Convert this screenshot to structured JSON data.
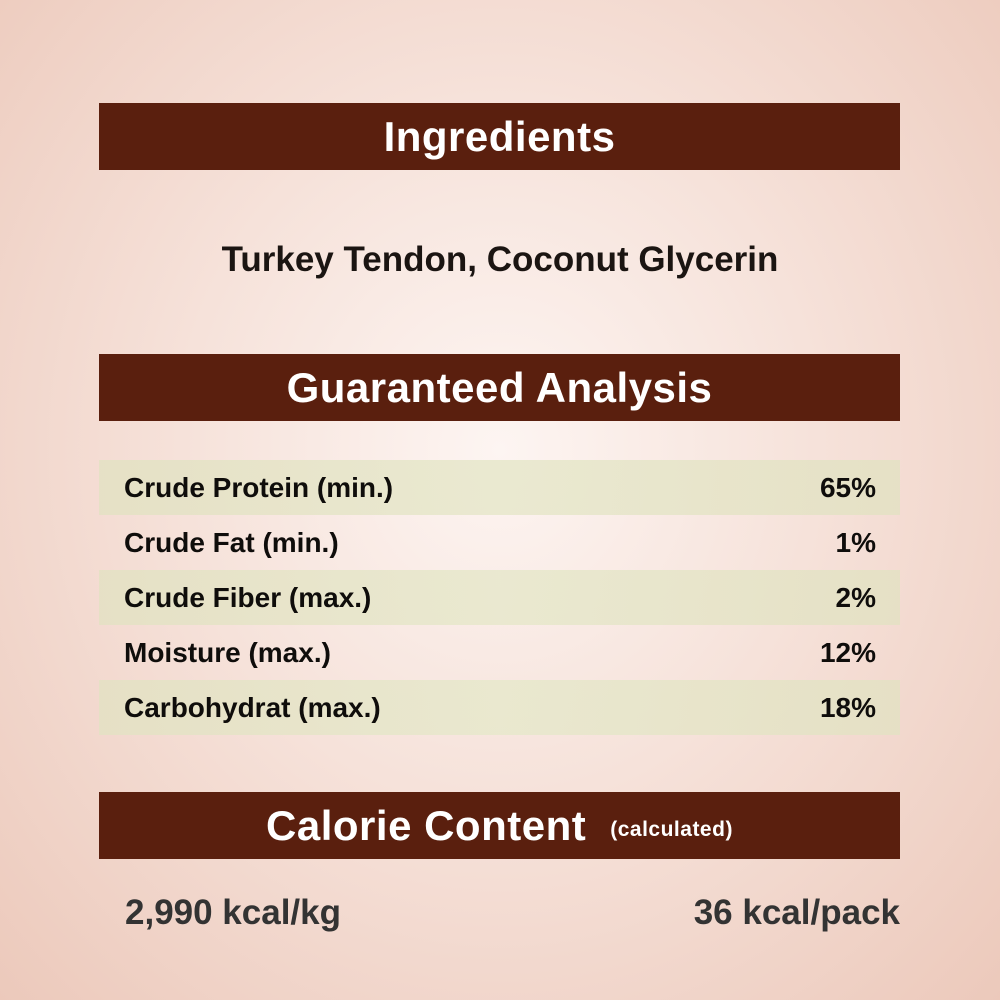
{
  "ingredients": {
    "heading": "Ingredients",
    "text": "Turkey Tendon, Coconut Glycerin"
  },
  "analysis": {
    "heading": "Guaranteed Analysis",
    "rows": [
      {
        "label": "Crude Protein (min.)",
        "value": "65%"
      },
      {
        "label": "Crude Fat (min.)",
        "value": "1%"
      },
      {
        "label": "Crude Fiber (max.)",
        "value": "2%"
      },
      {
        "label": "Moisture (max.)",
        "value": "12%"
      },
      {
        "label": "Carbohydrat (max.)",
        "value": "18%"
      }
    ]
  },
  "calorie": {
    "heading": "Calorie Content",
    "subheading": "(calculated)",
    "per_kg": "2,990 kcal/kg",
    "per_pack": "36 kcal/pack"
  },
  "colors": {
    "banner": "#5a1f0e",
    "row_shade": "#e4e1c4",
    "background": "#f6e2da"
  }
}
